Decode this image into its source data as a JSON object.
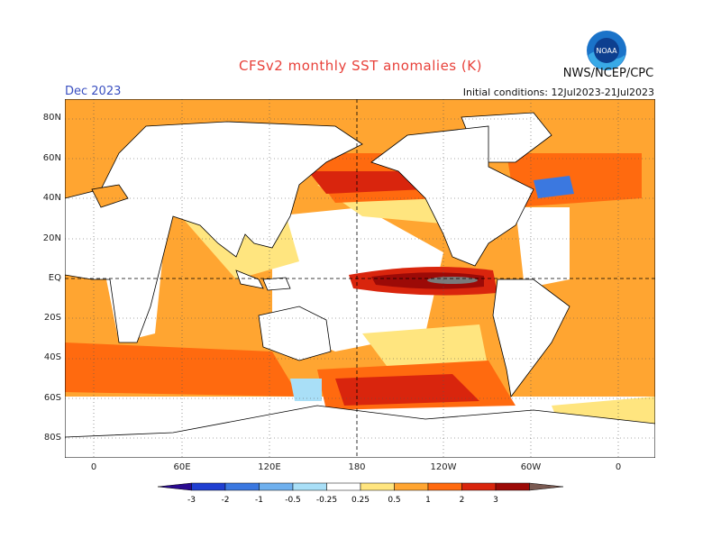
{
  "title": "CFSv2 monthly SST anomalies (K)",
  "agency": "NWS/NCEP/CPC",
  "logo_text": "NOAA",
  "valid_month": "Dec 2023",
  "initial_conditions": "Initial conditions: 12Jul2023-21Jul2023",
  "lat_labels": [
    "80N",
    "60N",
    "40N",
    "20N",
    "EQ",
    "20S",
    "40S",
    "60S",
    "80S"
  ],
  "lon_labels": [
    "0",
    "60E",
    "120E",
    "180",
    "120W",
    "60W",
    "0"
  ],
  "colorbar": {
    "ticks": [
      "-3",
      "-2",
      "-1",
      "-0.5",
      "-0.25",
      "0.25",
      "0.5",
      "1",
      "2",
      "3"
    ],
    "colors": [
      "#2a0a8f",
      "#1f3fd1",
      "#3b78e0",
      "#6fb0ee",
      "#a9dff7",
      "#ffffff",
      "#ffe57f",
      "#ffa531",
      "#ff6a0f",
      "#d9250d",
      "#9c0a07",
      "#7a5a52"
    ]
  },
  "colors": {
    "title": "#e8413a",
    "month": "#3a4fc0",
    "land": "#ffffff",
    "coast": "#000000"
  }
}
